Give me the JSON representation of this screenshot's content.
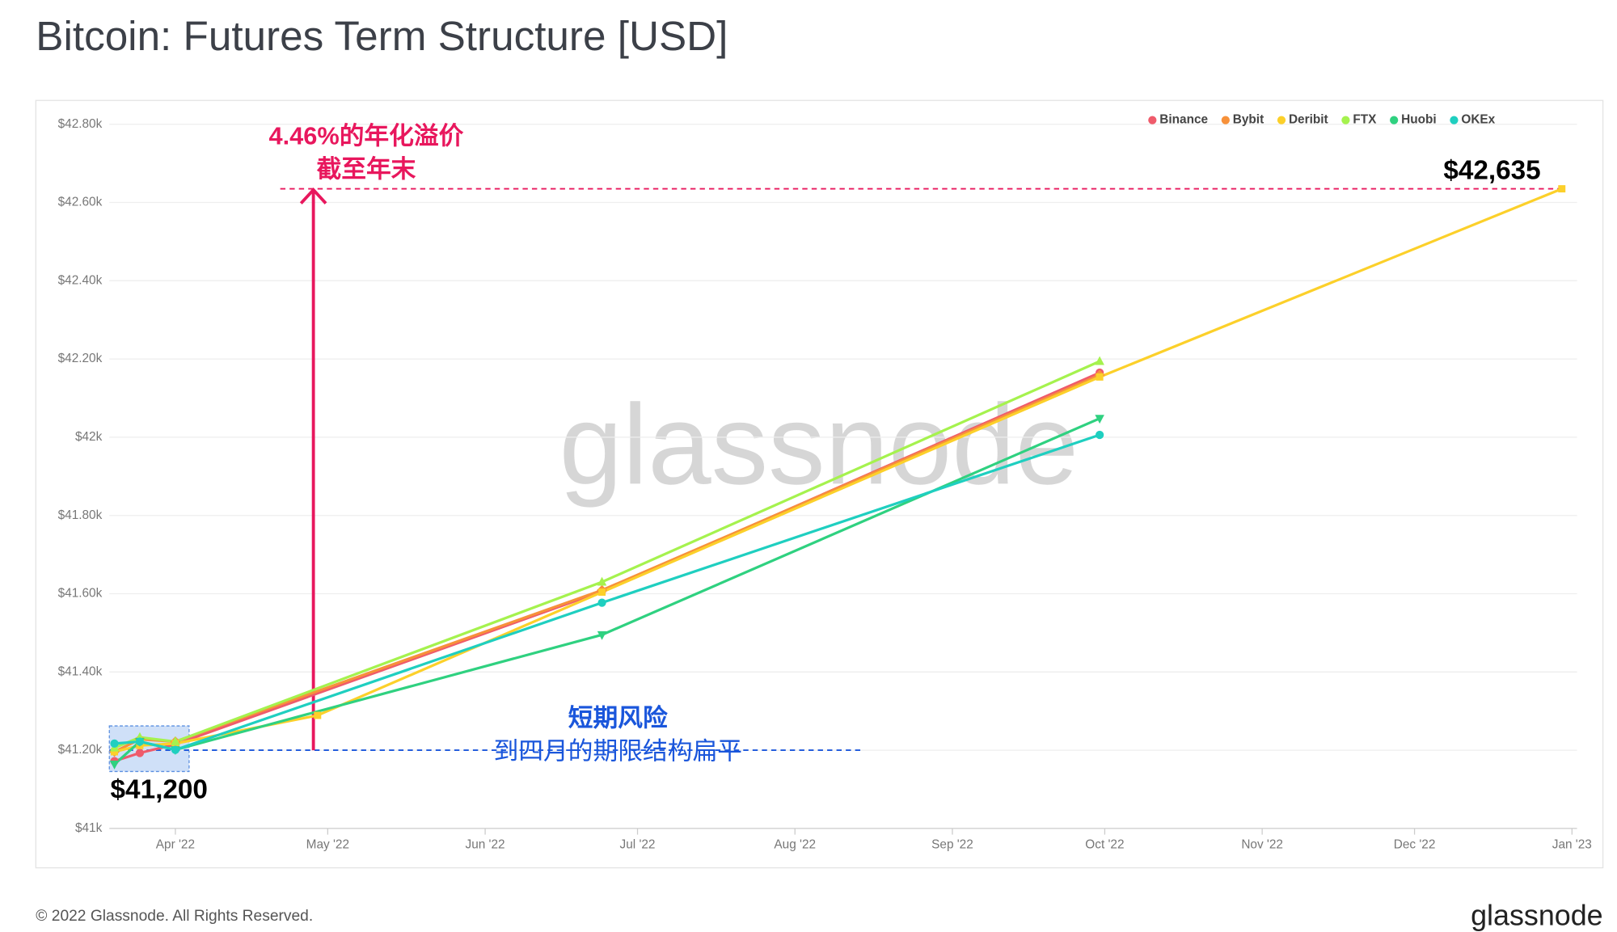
{
  "chart_data": {
    "type": "line",
    "title": "Bitcoin: Futures Term Structure [USD]",
    "watermark": "glassnode",
    "copyright": "© 2022 Glassnode. All Rights Reserved.",
    "brand": "glassnode",
    "xlim": [
      "2022-03-19",
      "2023-01-02"
    ],
    "xticks": [
      {
        "value": "2022-04-01",
        "label": "Apr '22"
      },
      {
        "value": "2022-05-01",
        "label": "May '22"
      },
      {
        "value": "2022-06-01",
        "label": "Jun '22"
      },
      {
        "value": "2022-07-01",
        "label": "Jul '22"
      },
      {
        "value": "2022-08-01",
        "label": "Aug '22"
      },
      {
        "value": "2022-09-01",
        "label": "Sep '22"
      },
      {
        "value": "2022-10-01",
        "label": "Oct '22"
      },
      {
        "value": "2022-11-01",
        "label": "Nov '22"
      },
      {
        "value": "2022-12-01",
        "label": "Dec '22"
      },
      {
        "value": "2023-01-01",
        "label": "Jan '23"
      }
    ],
    "ylim": [
      41000,
      42800
    ],
    "yticks": [
      {
        "value": 41000,
        "label": "$41k"
      },
      {
        "value": 41200,
        "label": "$41.20k"
      },
      {
        "value": 41400,
        "label": "$41.40k"
      },
      {
        "value": 41600,
        "label": "$41.60k"
      },
      {
        "value": 41800,
        "label": "$41.80k"
      },
      {
        "value": 42000,
        "label": "$42k"
      },
      {
        "value": 42200,
        "label": "$42.20k"
      },
      {
        "value": 42400,
        "label": "$42.40k"
      },
      {
        "value": 42600,
        "label": "$42.60k"
      },
      {
        "value": 42800,
        "label": "$42.80k"
      }
    ],
    "grid": true,
    "legend": "top-right",
    "series": [
      {
        "name": "Binance",
        "color": "#ef5b6b",
        "marker": "circle",
        "x": [
          "2022-03-20",
          "2022-03-25",
          "2022-04-01",
          "2022-06-24",
          "2022-09-30"
        ],
        "values": [
          41172,
          41193,
          41215,
          41606,
          42165
        ]
      },
      {
        "name": "Bybit",
        "color": "#f7913a",
        "marker": "diamond",
        "x": [
          "2022-03-20",
          "2022-03-25",
          "2022-04-01",
          "2022-06-24",
          "2022-09-30"
        ],
        "values": [
          41196,
          41228,
          41222,
          41609,
          42159
        ]
      },
      {
        "name": "Deribit",
        "color": "#fcd02a",
        "marker": "square",
        "x": [
          "2022-03-20",
          "2022-03-25",
          "2022-04-01",
          "2022-04-29",
          "2022-06-24",
          "2022-09-30",
          "2022-12-30"
        ],
        "values": [
          41196,
          41212,
          41217,
          41289,
          41604,
          42154,
          42635
        ]
      },
      {
        "name": "FTX",
        "color": "#a5f24e",
        "marker": "triangle-up",
        "x": [
          "2022-03-20",
          "2022-03-25",
          "2022-04-01",
          "2022-06-24",
          "2022-09-30"
        ],
        "values": [
          41206,
          41233,
          41222,
          41630,
          42194
        ]
      },
      {
        "name": "Huobi",
        "color": "#2fd180",
        "marker": "triangle-down",
        "x": [
          "2022-03-20",
          "2022-03-25",
          "2022-04-01",
          "2022-06-24",
          "2022-09-30"
        ],
        "values": [
          41164,
          41222,
          41201,
          41495,
          42048
        ]
      },
      {
        "name": "OKEx",
        "color": "#1fcfc0",
        "marker": "circle",
        "x": [
          "2022-03-20",
          "2022-03-25",
          "2022-04-01",
          "2022-06-24",
          "2022-09-30"
        ],
        "values": [
          41217,
          41222,
          41201,
          41577,
          42006
        ]
      }
    ],
    "reference_lines": [
      {
        "value": 42635,
        "label": "$42,635",
        "color": "#e8175d"
      },
      {
        "value": 41200,
        "label": "$41,200",
        "color": "#1a56db"
      }
    ],
    "annotations": {
      "premium": [
        "4.46%的年化溢价",
        "截至年末"
      ],
      "flat": [
        "短期风险",
        "到四月的期限结构扁平"
      ]
    }
  }
}
